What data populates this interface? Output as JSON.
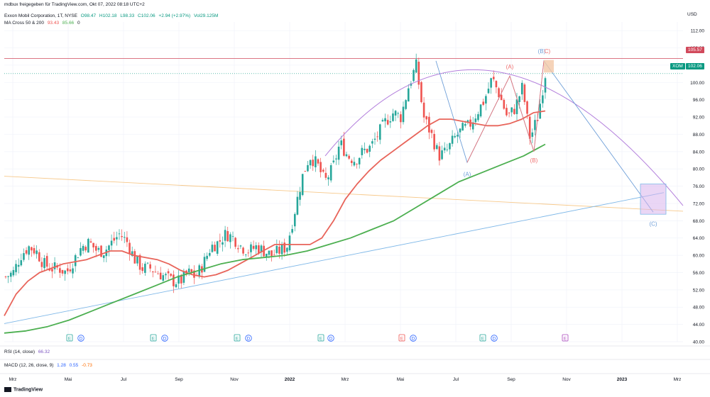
{
  "header": {
    "shared_by": "mdbux freigegeben für TradingView.com, Okt 07, 2022 08:18 UTC+2",
    "symbol": "Exxon Mobil Corporation, 1T, NYSE",
    "open": "O98.47",
    "high": "H102.18",
    "low": "L98.33",
    "close": "C102.06",
    "change": "+2.94 (+2.97%)",
    "vol": "Vol29.125M",
    "ma_label": "MA Cross 50 & 200",
    "ma_val1": "93.43",
    "ma_val2": "85.66",
    "ma_val3": "0"
  },
  "currency": "USD",
  "price_tags": {
    "hline": "105.57",
    "ticker": "XOM",
    "last": "102.06"
  },
  "indicators": {
    "rsi_label": "RSI (14, close)",
    "rsi_value": "66.32",
    "macd_label": "MACD (12, 26, close, 9)",
    "macd_v1": "1.28",
    "macd_v2": "0.55",
    "macd_v3": "-0.73"
  },
  "footer": {
    "brand": "TradingView"
  },
  "colors": {
    "up": "#26a69a",
    "down": "#ef5350",
    "ma50": "#e8645a",
    "ma200": "#4caf50",
    "arc": "#b37fdc",
    "wave": "#6f9fd8",
    "wave_red": "#ef6f6f",
    "hline": "#d1495b",
    "trend_orange": "#f7c98b",
    "trend_blue": "#7fb8e8",
    "last": "#089981"
  },
  "chart_data": {
    "type": "candlestick",
    "ylim": [
      40,
      114
    ],
    "y_ticks": [
      "40.00",
      "44.00",
      "48.00",
      "52.00",
      "56.00",
      "60.00",
      "64.00",
      "68.00",
      "72.00",
      "76.00",
      "80.00",
      "84.00",
      "88.00",
      "92.00",
      "96.00",
      "100.00",
      "104.00",
      "108.00",
      "112.00"
    ],
    "x_ticks": [
      "Mrz",
      "Mai",
      "Jul",
      "Sep",
      "Nov",
      "2022",
      "Mrz",
      "Mai",
      "Jul",
      "Sep",
      "Nov",
      "2023",
      "Mrz"
    ],
    "x_ticks_bold": [
      "2022",
      "2023"
    ],
    "close_series": [
      55,
      56,
      60,
      62,
      61,
      58,
      57,
      57,
      56,
      59,
      62,
      63,
      61,
      61,
      63,
      65,
      63,
      59,
      57,
      57,
      56,
      55,
      54,
      54,
      56,
      55,
      58,
      62,
      63,
      65,
      64,
      62,
      61,
      62,
      61,
      60,
      61,
      62,
      70,
      78,
      83,
      81,
      77,
      80,
      86,
      83,
      82,
      84,
      85,
      88,
      91,
      93,
      92,
      99,
      104,
      92,
      88,
      83,
      84,
      87,
      89,
      90,
      93,
      96,
      101,
      97,
      92,
      94,
      99,
      87,
      92,
      102
    ],
    "ma50": [
      46,
      51,
      54,
      56,
      57,
      58,
      58.5,
      59,
      60,
      61,
      61,
      60,
      59.5,
      59,
      58,
      56.5,
      55.5,
      55,
      55.5,
      56.5,
      58,
      59.5,
      61,
      62.5,
      62.5,
      62.5,
      62.5,
      64,
      68,
      73,
      76.5,
      79.5,
      82,
      84,
      86,
      88,
      90,
      91.5,
      91.5,
      91,
      90.5,
      90,
      90,
      90.5,
      91.5,
      93,
      93.4
    ],
    "ma200": [
      42,
      42.5,
      43.5,
      45,
      47,
      49,
      51,
      53,
      55,
      56.5,
      58,
      59,
      59.5,
      60,
      61,
      62.5,
      64,
      66,
      68,
      71,
      74,
      77,
      79,
      81,
      83,
      85.7
    ],
    "annotations": {
      "hline": 105.57,
      "wave_points": [
        {
          "label": "(A)",
          "y": 81.5
        },
        {
          "label": "(A)",
          "y": 101.5
        },
        {
          "label": "(B)",
          "y": 84
        },
        {
          "label": "(B)",
          "y": 105
        },
        {
          "label": "C)",
          "y": 105
        },
        {
          "label": "(C)",
          "y": 70
        }
      ],
      "target_box": {
        "y_top": 76.5,
        "y_bottom": 69.5
      }
    },
    "earnings_markers": [
      "E",
      "D",
      "E",
      "D",
      "E",
      "D",
      "E",
      "D",
      "E",
      "D",
      "E",
      "D",
      "E"
    ]
  }
}
